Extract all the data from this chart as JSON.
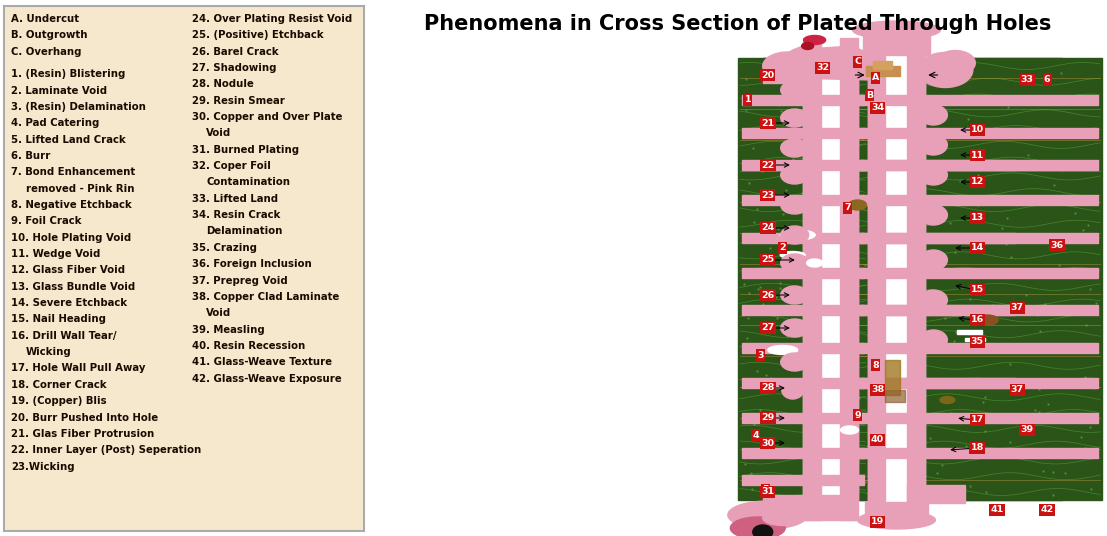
{
  "title": "Phenomena in Cross Section of Plated Through Holes",
  "legend_bg": "#f5e8cc",
  "legend_border": "#aaaaaa",
  "text_color": "#1a0a00",
  "left_col_lines": [
    "A. Undercut",
    "B. Outgrowth",
    "C. Overhang",
    "",
    "1. (Resin) Blistering",
    "2. Laminate Void",
    "3. (Resin) Delamination",
    "4. Pad Catering",
    "5. Lifted Land Crack",
    "6. Burr",
    "7. Bond Enhancement",
    "   removed - Pink Rin",
    "8. Negative Etchback",
    "9. Foil Crack",
    "10. Hole Plating Void",
    "11. Wedge Void",
    "12. Glass Fiber Void",
    "13. Glass Bundle Void",
    "14. Severe Etchback",
    "15. Nail Heading",
    "16. Drill Wall Tear/",
    "    Wicking",
    "17. Hole Wall Pull Away",
    "18. Corner Crack",
    "19. (Copper) Blis",
    "20. Burr Pushed Into Hole",
    "21. Glas Fiber Protrusion",
    "22. Inner Layer (Post) Seperation",
    "23.Wicking"
  ],
  "right_col_lines": [
    "24. Over Plating Resist Void",
    "25. (Positive) Etchback",
    "26. Barel Crack",
    "27. Shadowing",
    "28. Nodule",
    "29. Resin Smear",
    "30. Copper and Over Plate",
    "    Void",
    "31. Burned Plating",
    "32. Coper Foil",
    "Contamination",
    "33. Lifted Land",
    "34. Resin Crack",
    "Delamination",
    "35. Crazing",
    "36. Foreign Inclusion",
    "37. Prepreg Void",
    "38. Copper Clad Laminate",
    "    Void",
    "39. Measling",
    "40. Resin Recession",
    "41. Glass-Weave Texture",
    "42. Glass-Weave Exposure"
  ],
  "board_dark_green": "#2a5418",
  "board_med_green": "#3a6e22",
  "board_light_green": "#4a8a2a",
  "wave_green": "#5aaa3a",
  "copper_gold": "#a07820",
  "copper_tan": "#c8a040",
  "pink": "#e8a0b8",
  "dark_pink": "#d06080",
  "label_red": "#cc1111",
  "white": "#ffffff",
  "fig_width": 11.07,
  "fig_height": 5.36
}
